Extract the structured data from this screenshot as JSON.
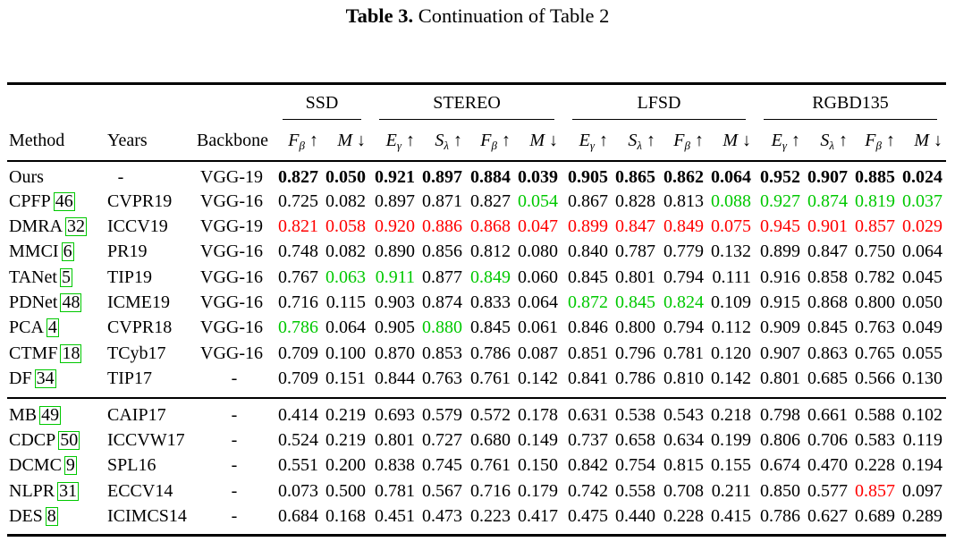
{
  "caption": {
    "label": "Table 3.",
    "text": "Continuation of Table 2"
  },
  "header": {
    "method": "Method",
    "years": "Years",
    "backbone": "Backbone",
    "datasets": [
      "SSD",
      "STEREO",
      "LFSD",
      "RGBD135"
    ]
  },
  "metric_headers": [
    [
      "F",
      "β",
      "↑"
    ],
    [
      "M",
      "",
      "↓"
    ],
    [
      "E",
      "γ",
      "↑"
    ],
    [
      "S",
      "λ",
      "↑"
    ],
    [
      "F",
      "β",
      "↑"
    ],
    [
      "M",
      "",
      "↓"
    ],
    [
      "E",
      "γ",
      "↑"
    ],
    [
      "S",
      "λ",
      "↑"
    ],
    [
      "F",
      "β",
      "↑"
    ],
    [
      "M",
      "",
      "↓"
    ],
    [
      "E",
      "γ",
      "↑"
    ],
    [
      "S",
      "λ",
      "↑"
    ],
    [
      "F",
      "β",
      "↑"
    ],
    [
      "M",
      "",
      "↓"
    ]
  ],
  "colors": {
    "best": "#000000",
    "second": "#ff0000",
    "third": "#00c800"
  },
  "rows": [
    {
      "method": "Ours",
      "ref": "",
      "year": "-",
      "backbone": "VGG-19",
      "values": [
        "0.827",
        "0.050",
        "0.921",
        "0.897",
        "0.884",
        "0.039",
        "0.905",
        "0.865",
        "0.862",
        "0.064",
        "0.952",
        "0.907",
        "0.885",
        "0.024"
      ],
      "styles": [
        "b",
        "b",
        "b",
        "b",
        "b",
        "b",
        "b",
        "b",
        "b",
        "b",
        "b",
        "b",
        "b",
        "b"
      ]
    },
    {
      "method": "CPFP",
      "ref": "46",
      "year": "CVPR19",
      "backbone": "VGG-16",
      "values": [
        "0.725",
        "0.082",
        "0.897",
        "0.871",
        "0.827",
        "0.054",
        "0.867",
        "0.828",
        "0.813",
        "0.088",
        "0.927",
        "0.874",
        "0.819",
        "0.037"
      ],
      "styles": [
        "",
        "",
        "",
        "",
        "",
        "g",
        "",
        "",
        "",
        "g",
        "g",
        "g",
        "g",
        "g"
      ]
    },
    {
      "method": "DMRA",
      "ref": "32",
      "year": "ICCV19",
      "backbone": "VGG-19",
      "values": [
        "0.821",
        "0.058",
        "0.920",
        "0.886",
        "0.868",
        "0.047",
        "0.899",
        "0.847",
        "0.849",
        "0.075",
        "0.945",
        "0.901",
        "0.857",
        "0.029"
      ],
      "styles": [
        "r",
        "r",
        "r",
        "r",
        "r",
        "r",
        "r",
        "r",
        "r",
        "r",
        "r",
        "r",
        "r",
        "r"
      ]
    },
    {
      "method": "MMCI",
      "ref": "6",
      "year": "PR19",
      "backbone": "VGG-16",
      "values": [
        "0.748",
        "0.082",
        "0.890",
        "0.856",
        "0.812",
        "0.080",
        "0.840",
        "0.787",
        "0.779",
        "0.132",
        "0.899",
        "0.847",
        "0.750",
        "0.064"
      ],
      "styles": [
        "",
        "",
        "",
        "",
        "",
        "",
        "",
        "",
        "",
        "",
        "",
        "",
        "",
        ""
      ]
    },
    {
      "method": "TANet",
      "ref": "5",
      "year": "TIP19",
      "backbone": "VGG-16",
      "values": [
        "0.767",
        "0.063",
        "0.911",
        "0.877",
        "0.849",
        "0.060",
        "0.845",
        "0.801",
        "0.794",
        "0.111",
        "0.916",
        "0.858",
        "0.782",
        "0.045"
      ],
      "styles": [
        "",
        "g",
        "g",
        "",
        "g",
        "",
        "",
        "",
        "",
        "",
        "",
        "",
        "",
        ""
      ]
    },
    {
      "method": "PDNet",
      "ref": "48",
      "year": "ICME19",
      "backbone": "VGG-16",
      "values": [
        "0.716",
        "0.115",
        "0.903",
        "0.874",
        "0.833",
        "0.064",
        "0.872",
        "0.845",
        "0.824",
        "0.109",
        "0.915",
        "0.868",
        "0.800",
        "0.050"
      ],
      "styles": [
        "",
        "",
        "",
        "",
        "",
        "",
        "g",
        "g",
        "g",
        "",
        "",
        "",
        "",
        ""
      ]
    },
    {
      "method": "PCA",
      "ref": "4",
      "year": "CVPR18",
      "backbone": "VGG-16",
      "values": [
        "0.786",
        "0.064",
        "0.905",
        "0.880",
        "0.845",
        "0.061",
        "0.846",
        "0.800",
        "0.794",
        "0.112",
        "0.909",
        "0.845",
        "0.763",
        "0.049"
      ],
      "styles": [
        "g",
        "",
        "",
        "g",
        "",
        "",
        "",
        "",
        "",
        "",
        "",
        "",
        "",
        ""
      ]
    },
    {
      "method": "CTMF",
      "ref": "18",
      "year": "TCyb17",
      "backbone": "VGG-16",
      "values": [
        "0.709",
        "0.100",
        "0.870",
        "0.853",
        "0.786",
        "0.087",
        "0.851",
        "0.796",
        "0.781",
        "0.120",
        "0.907",
        "0.863",
        "0.765",
        "0.055"
      ],
      "styles": [
        "",
        "",
        "",
        "",
        "",
        "",
        "",
        "",
        "",
        "",
        "",
        "",
        "",
        ""
      ]
    },
    {
      "method": "DF",
      "ref": "34",
      "year": "TIP17",
      "backbone": "-",
      "values": [
        "0.709",
        "0.151",
        "0.844",
        "0.763",
        "0.761",
        "0.142",
        "0.841",
        "0.786",
        "0.810",
        "0.142",
        "0.801",
        "0.685",
        "0.566",
        "0.130"
      ],
      "styles": [
        "",
        "",
        "",
        "",
        "",
        "",
        "",
        "",
        "",
        "",
        "",
        "",
        "",
        ""
      ]
    },
    {
      "method": "MB",
      "ref": "49",
      "year": "CAIP17",
      "backbone": "-",
      "values": [
        "0.414",
        "0.219",
        "0.693",
        "0.579",
        "0.572",
        "0.178",
        "0.631",
        "0.538",
        "0.543",
        "0.218",
        "0.798",
        "0.661",
        "0.588",
        "0.102"
      ],
      "styles": [
        "",
        "",
        "",
        "",
        "",
        "",
        "",
        "",
        "",
        "",
        "",
        "",
        "",
        ""
      ]
    },
    {
      "method": "CDCP",
      "ref": "50",
      "year": "ICCVW17",
      "backbone": "-",
      "values": [
        "0.524",
        "0.219",
        "0.801",
        "0.727",
        "0.680",
        "0.149",
        "0.737",
        "0.658",
        "0.634",
        "0.199",
        "0.806",
        "0.706",
        "0.583",
        "0.119"
      ],
      "styles": [
        "",
        "",
        "",
        "",
        "",
        "",
        "",
        "",
        "",
        "",
        "",
        "",
        "",
        ""
      ]
    },
    {
      "method": "DCMC",
      "ref": "9",
      "year": "SPL16",
      "backbone": "-",
      "values": [
        "0.551",
        "0.200",
        "0.838",
        "0.745",
        "0.761",
        "0.150",
        "0.842",
        "0.754",
        "0.815",
        "0.155",
        "0.674",
        "0.470",
        "0.228",
        "0.194"
      ],
      "styles": [
        "",
        "",
        "",
        "",
        "",
        "",
        "",
        "",
        "",
        "",
        "",
        "",
        "",
        ""
      ]
    },
    {
      "method": "NLPR",
      "ref": "31",
      "year": "ECCV14",
      "backbone": "-",
      "values": [
        "0.073",
        "0.500",
        "0.781",
        "0.567",
        "0.716",
        "0.179",
        "0.742",
        "0.558",
        "0.708",
        "0.211",
        "0.850",
        "0.577",
        "0.857",
        "0.097"
      ],
      "styles": [
        "",
        "",
        "",
        "",
        "",
        "",
        "",
        "",
        "",
        "",
        "",
        "",
        "r",
        ""
      ]
    },
    {
      "method": "DES",
      "ref": "8",
      "year": "ICIMCS14",
      "backbone": "-",
      "values": [
        "0.684",
        "0.168",
        "0.451",
        "0.473",
        "0.223",
        "0.417",
        "0.475",
        "0.440",
        "0.228",
        "0.415",
        "0.786",
        "0.627",
        "0.689",
        "0.289"
      ],
      "styles": [
        "",
        "",
        "",
        "",
        "",
        "",
        "",
        "",
        "",
        "",
        "",
        "",
        "",
        ""
      ]
    }
  ]
}
